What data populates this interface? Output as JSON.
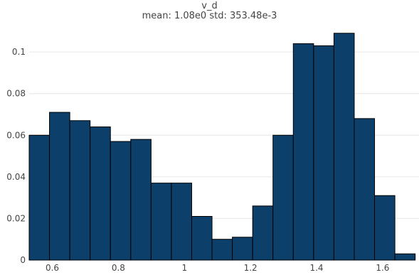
{
  "chart_data": {
    "type": "bar",
    "title": "v_d",
    "subtitle": "mean: 1.08e0 std: 353.48e-3",
    "xlabel": "",
    "ylabel": "",
    "bin_edges": [
      0.53,
      0.5915,
      0.653,
      0.7145,
      0.776,
      0.8375,
      0.899,
      0.9605,
      1.022,
      1.0835,
      1.145,
      1.2065,
      1.268,
      1.3295,
      1.391,
      1.4525,
      1.514,
      1.5755,
      1.637,
      1.6985
    ],
    "values": [
      0.06,
      0.071,
      0.067,
      0.064,
      0.057,
      0.058,
      0.037,
      0.037,
      0.021,
      0.01,
      0.011,
      0.026,
      0.06,
      0.104,
      0.103,
      0.109,
      0.068,
      0.031,
      0.003,
      0.002
    ],
    "xlim": [
      0.53,
      1.71
    ],
    "ylim": [
      0,
      0.112
    ],
    "x_ticks": [
      0.6,
      0.8,
      1,
      1.2,
      1.4,
      1.6
    ],
    "x_tick_labels": [
      "0.6",
      "0.8",
      "1",
      "1.2",
      "1.4",
      "1.6"
    ],
    "y_ticks": [
      0,
      0.02,
      0.04,
      0.06,
      0.08,
      0.1
    ],
    "y_tick_labels": [
      "0",
      "0.02",
      "0.04",
      "0.06",
      "0.08",
      "0.1"
    ],
    "grid": true,
    "bar_color": "#0d3f6b",
    "bar_edge_color": "#000000",
    "grid_color": "#e6e6e6"
  }
}
